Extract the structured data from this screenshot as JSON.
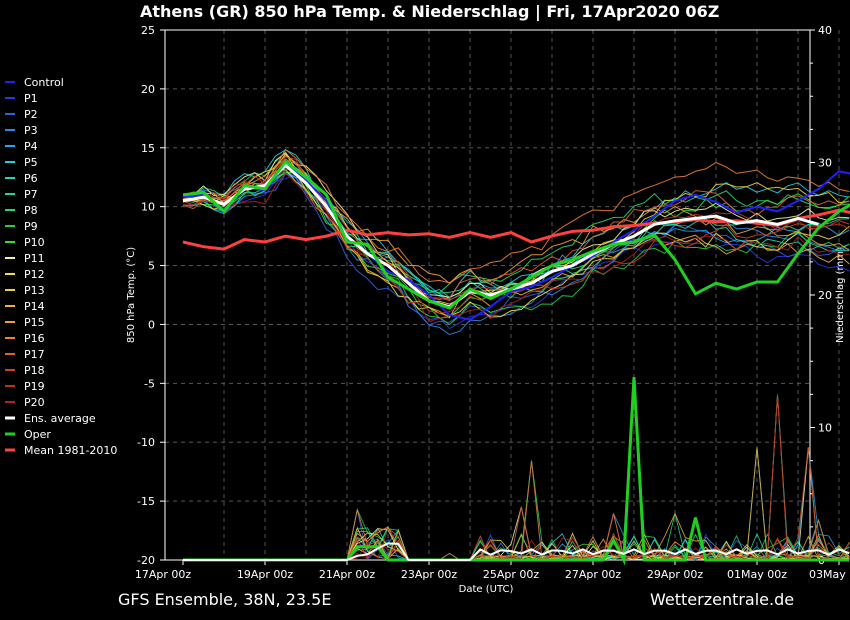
{
  "header": {
    "title": "Athens  (GR)  850 hPa Temp. & Niederschlag | Fri, 17Apr2020 06Z"
  },
  "footer": {
    "left": "GFS Ensemble, 38N, 23.5E",
    "right": "Wetterzentrale.de"
  },
  "chart_data": {
    "type": "line",
    "title": "Athens  (GR)  850 hPa Temp. & Niederschlag | Fri, 17Apr2020 06Z",
    "xlabel": "Date (UTC)",
    "ylabel": "850 hPa Temp. (°C)",
    "y2label": "Niederschlag (mm)",
    "xlim": [
      "2020-04-17T00Z",
      "2020-05-03T12Z"
    ],
    "ylim": [
      -20,
      25
    ],
    "y2lim": [
      0,
      40
    ],
    "x_ticks": [
      "17Apr 00z",
      "19Apr 00z",
      "21Apr 00z",
      "23Apr 00z",
      "25Apr 00z",
      "27Apr 00z",
      "29Apr 00z",
      "01May 00z",
      "03May 00z"
    ],
    "y_ticks": [
      "-20",
      "-15",
      "-10",
      "-5",
      "0",
      "5",
      "10",
      "15",
      "20",
      "25"
    ],
    "y2_ticks": [
      "0",
      "10",
      "20",
      "30",
      "40"
    ],
    "grid": true,
    "legend_position": "left",
    "legend": [
      {
        "name": "Control",
        "color": "#2020ff"
      },
      {
        "name": "P1",
        "color": "#2a36e0"
      },
      {
        "name": "P2",
        "color": "#2f5fe6"
      },
      {
        "name": "P3",
        "color": "#2e86e8"
      },
      {
        "name": "P4",
        "color": "#1ea9ef"
      },
      {
        "name": "P5",
        "color": "#1fcfe0"
      },
      {
        "name": "P6",
        "color": "#20d8b0"
      },
      {
        "name": "P7",
        "color": "#20d890"
      },
      {
        "name": "P8",
        "color": "#20d870"
      },
      {
        "name": "P9",
        "color": "#20d040"
      },
      {
        "name": "P10",
        "color": "#30e030"
      },
      {
        "name": "P11",
        "color": "#f0f0a0"
      },
      {
        "name": "P12",
        "color": "#f0e040"
      },
      {
        "name": "P13",
        "color": "#f0d030"
      },
      {
        "name": "P14",
        "color": "#f0b030"
      },
      {
        "name": "P15",
        "color": "#f0a030"
      },
      {
        "name": "P16",
        "color": "#f08030"
      },
      {
        "name": "P17",
        "color": "#e06030"
      },
      {
        "name": "P18",
        "color": "#d04020"
      },
      {
        "name": "P19",
        "color": "#c03020"
      },
      {
        "name": "P20",
        "color": "#b02020"
      },
      {
        "name": "Ens. average",
        "color": "#ffffff"
      },
      {
        "name": "Oper",
        "color": "#20d020"
      },
      {
        "name": "Mean 1981-2010",
        "color": "#ff4040"
      }
    ],
    "series": [
      {
        "name": "Ens. average",
        "color": "#ffffff",
        "values": [
          [
            0,
            10.5
          ],
          [
            0.5,
            10.8
          ],
          [
            1,
            10.2
          ],
          [
            1.5,
            11.5
          ],
          [
            2,
            11.8
          ],
          [
            2.5,
            13.5
          ],
          [
            3,
            12
          ],
          [
            3.5,
            10
          ],
          [
            4,
            7.5
          ],
          [
            4.5,
            6
          ],
          [
            5,
            5
          ],
          [
            5.5,
            3.5
          ],
          [
            6,
            2
          ],
          [
            6.5,
            1.5
          ],
          [
            7,
            2.8
          ],
          [
            7.5,
            2.5
          ],
          [
            8,
            3
          ],
          [
            8.5,
            3.5
          ],
          [
            9,
            4.5
          ],
          [
            9.5,
            5
          ],
          [
            10,
            6
          ],
          [
            10.5,
            6.8
          ],
          [
            11,
            7.5
          ],
          [
            11.5,
            8.5
          ],
          [
            12,
            8.8
          ],
          [
            12.5,
            9
          ],
          [
            13,
            9.2
          ],
          [
            13.5,
            8.6
          ],
          [
            14,
            8.8
          ],
          [
            14.5,
            8.5
          ],
          [
            15,
            9
          ],
          [
            15.5,
            8.5
          ]
        ]
      },
      {
        "name": "Oper",
        "color": "#20d020",
        "values": [
          [
            0,
            11
          ],
          [
            0.5,
            11.2
          ],
          [
            1,
            9.6
          ],
          [
            1.5,
            11.8
          ],
          [
            2,
            11.5
          ],
          [
            2.5,
            13.8
          ],
          [
            3,
            12.5
          ],
          [
            3.5,
            11
          ],
          [
            4,
            7
          ],
          [
            4.5,
            6.8
          ],
          [
            5,
            4
          ],
          [
            5.5,
            3
          ],
          [
            6,
            2
          ],
          [
            6.5,
            1.4
          ],
          [
            7,
            3
          ],
          [
            7.5,
            2.2
          ],
          [
            8,
            3
          ],
          [
            8.5,
            4
          ],
          [
            9,
            5
          ],
          [
            9.5,
            5.5
          ],
          [
            10,
            6.2
          ],
          [
            10.5,
            6.8
          ],
          [
            11,
            7
          ],
          [
            11.5,
            7.6
          ],
          [
            12,
            5.5
          ],
          [
            12.5,
            2.6
          ],
          [
            13,
            3.5
          ],
          [
            13.5,
            3
          ],
          [
            14,
            3.6
          ],
          [
            14.5,
            3.6
          ],
          [
            15,
            6
          ],
          [
            15.5,
            8.2
          ],
          [
            16,
            9.6
          ],
          [
            16.3,
            10.2
          ]
        ]
      },
      {
        "name": "Mean 1981-2010",
        "color": "#ff4040",
        "values": [
          [
            0,
            7
          ],
          [
            0.5,
            6.6
          ],
          [
            1,
            6.4
          ],
          [
            1.5,
            7.2
          ],
          [
            2,
            7
          ],
          [
            2.5,
            7.5
          ],
          [
            3,
            7.2
          ],
          [
            3.5,
            7.5
          ],
          [
            4,
            8
          ],
          [
            4.5,
            7.6
          ],
          [
            5,
            7.8
          ],
          [
            5.5,
            7.6
          ],
          [
            6,
            7.7
          ],
          [
            6.5,
            7.4
          ],
          [
            7,
            7.8
          ],
          [
            7.5,
            7.4
          ],
          [
            8,
            7.8
          ],
          [
            8.5,
            7
          ],
          [
            9,
            7.5
          ],
          [
            9.5,
            7.9
          ],
          [
            10,
            8
          ],
          [
            10.5,
            8.3
          ],
          [
            11,
            8.4
          ],
          [
            11.5,
            8.6
          ],
          [
            12,
            8.7
          ],
          [
            12.5,
            8.9
          ],
          [
            13,
            8.7
          ],
          [
            13.5,
            8.8
          ],
          [
            14,
            8.6
          ],
          [
            14.5,
            8.4
          ],
          [
            15,
            9
          ],
          [
            15.5,
            9.3
          ],
          [
            16,
            9.7
          ],
          [
            16.3,
            9.5
          ]
        ]
      },
      {
        "name": "Control",
        "color": "#2020ff",
        "values": [
          [
            0,
            10.8
          ],
          [
            0.5,
            11
          ],
          [
            1,
            9.8
          ],
          [
            1.5,
            11.6
          ],
          [
            2,
            11.4
          ],
          [
            2.5,
            13.6
          ],
          [
            3,
            12.2
          ],
          [
            3.5,
            10.5
          ],
          [
            4,
            7.4
          ],
          [
            4.5,
            6
          ],
          [
            5,
            4.5
          ],
          [
            5.5,
            3.8
          ],
          [
            6,
            2.5
          ],
          [
            6.5,
            0.8
          ],
          [
            7,
            0.4
          ],
          [
            7.5,
            1.5
          ],
          [
            8,
            2.8
          ],
          [
            8.5,
            3.2
          ],
          [
            9,
            4
          ],
          [
            9.5,
            5
          ],
          [
            10,
            5.8
          ],
          [
            10.5,
            7
          ],
          [
            11,
            8
          ],
          [
            11.5,
            9.2
          ],
          [
            12,
            10.5
          ],
          [
            12.5,
            11
          ],
          [
            13,
            10.4
          ],
          [
            13.5,
            9.5
          ],
          [
            14,
            10
          ],
          [
            14.5,
            9.6
          ],
          [
            15,
            10.5
          ],
          [
            15.5,
            11.5
          ],
          [
            16,
            13
          ],
          [
            16.3,
            12.8
          ]
        ]
      }
    ],
    "precip_peaks": [
      [
        4.2,
        3.8
      ],
      [
        5.0,
        2.5
      ],
      [
        6.4,
        0.5
      ],
      [
        7.5,
        1.5
      ],
      [
        8.2,
        4
      ],
      [
        8.6,
        7.5
      ],
      [
        9.5,
        2
      ],
      [
        10.5,
        3.5
      ],
      [
        11.0,
        13.8
      ],
      [
        12.0,
        3.5
      ],
      [
        13.0,
        1
      ],
      [
        14.0,
        8.5
      ],
      [
        14.5,
        12.5
      ],
      [
        15.2,
        8.5
      ],
      [
        15.6,
        3
      ]
    ]
  }
}
